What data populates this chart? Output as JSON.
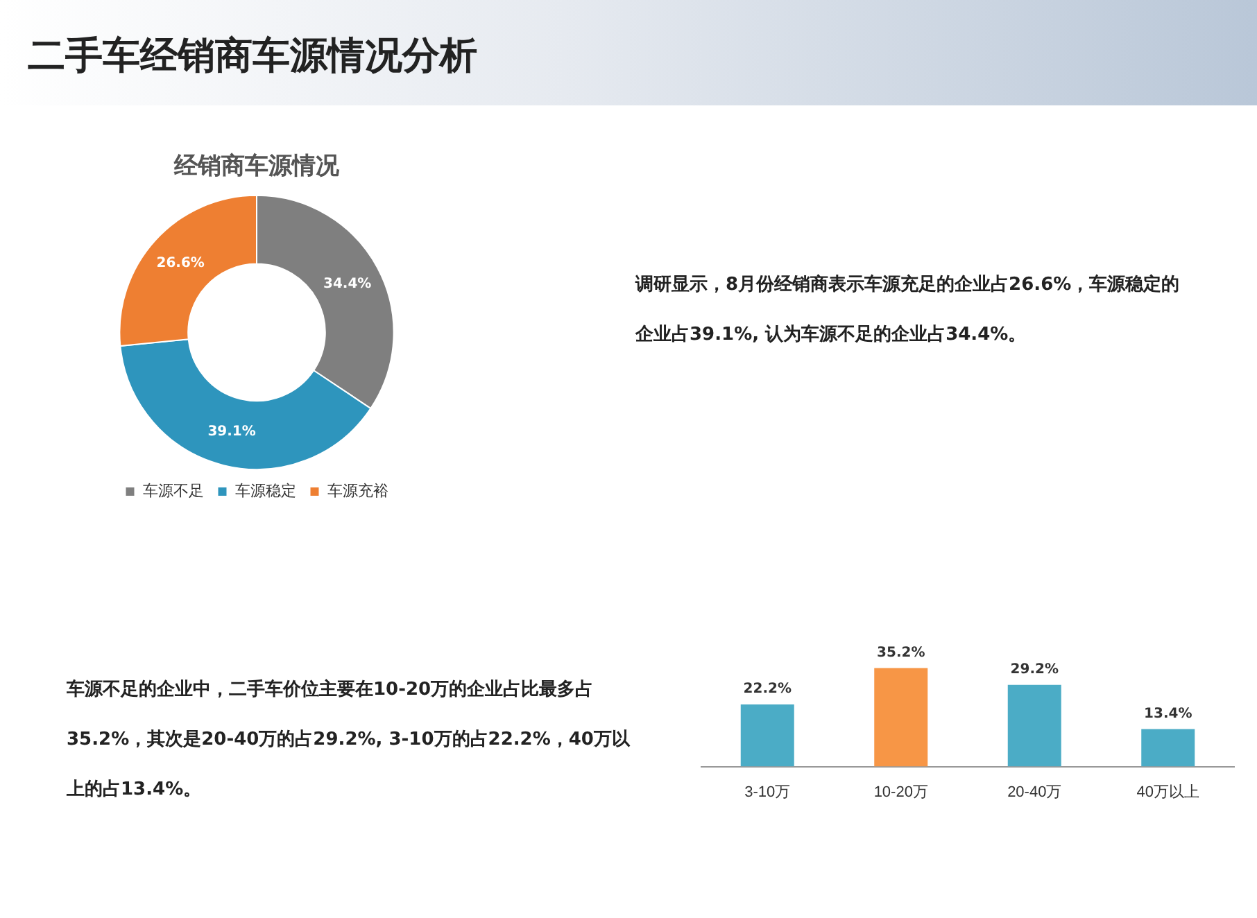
{
  "chart_data": [
    {
      "type": "donut",
      "title": "经销商车源情况",
      "categories": [
        "车源不足",
        "车源稳定",
        "车源充裕"
      ],
      "values": [
        34.4,
        39.1,
        26.6
      ],
      "colors": [
        "#7f7f7f",
        "#2e95bd",
        "#ee7f32"
      ],
      "value_labels": [
        "34.4%",
        "39.1%",
        "26.6%"
      ],
      "legend": "bottom",
      "annotations": [
        "二手车经销商车源情况分析",
        "调研显示，8月份经销商表示车源充足的企业占26.6%，车源稳定的企业占39.1%, 认为车源不足的企业占34.4%。"
      ]
    },
    {
      "type": "bar",
      "categories": [
        "3-10万",
        "10-20万",
        "20-40万",
        "40万以上"
      ],
      "values": [
        22.2,
        35.2,
        29.2,
        13.4
      ],
      "colors": [
        "#4bacc6",
        "#f79646",
        "#4bacc6",
        "#4bacc6"
      ],
      "value_labels": [
        "22.2%",
        "35.2%",
        "29.2%",
        "13.4%"
      ],
      "tick_labels": "x",
      "grid": false,
      "legend": false,
      "annotations": [
        "车源不足的企业中，二手车价位主要在10-20万的企业占比最多占35.2%，其次是20-40万的占29.2%, 3-10万的占22.2%，40万以上的占13.4%。"
      ]
    }
  ]
}
